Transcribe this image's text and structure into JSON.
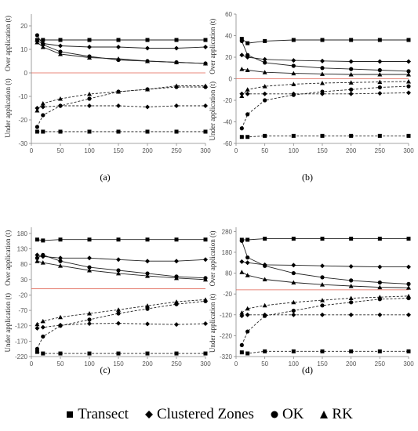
{
  "legend": [
    {
      "name": "Transect",
      "marker": "square"
    },
    {
      "name": "Clustered Zones",
      "marker": "diamond"
    },
    {
      "name": "OK",
      "marker": "circle"
    },
    {
      "name": "RK",
      "marker": "triangle"
    }
  ],
  "chart_data": [
    {
      "type": "line",
      "panel_label": "(a)",
      "ylabel_over": "Over application (t)",
      "ylabel_under": "Under application (t)",
      "x": [
        10,
        20,
        50,
        100,
        150,
        200,
        250,
        300
      ],
      "xticks": [
        0,
        50,
        100,
        150,
        200,
        250,
        300
      ],
      "xlim": [
        0,
        300
      ],
      "yticks": [
        -30,
        -20,
        -10,
        0,
        10,
        20
      ],
      "ylim": [
        -30,
        25
      ],
      "series": [
        {
          "name": "Transect",
          "kind": "over",
          "values": [
            14,
            14,
            14,
            14,
            14,
            14,
            14,
            14
          ]
        },
        {
          "name": "Clustered Zones",
          "kind": "over",
          "values": [
            13.5,
            12.5,
            11.5,
            11,
            11,
            10.5,
            10.5,
            11
          ]
        },
        {
          "name": "OK",
          "kind": "over",
          "values": [
            16,
            12,
            9,
            7,
            5.5,
            5,
            4.5,
            4
          ]
        },
        {
          "name": "RK",
          "kind": "over",
          "values": [
            13,
            11,
            8,
            6.5,
            6,
            5,
            4.5,
            4
          ]
        },
        {
          "name": "Transect",
          "kind": "under",
          "values": [
            -25,
            -25,
            -25,
            -25,
            -25,
            -25,
            -25,
            -25
          ]
        },
        {
          "name": "Clustered Zones",
          "kind": "under",
          "values": [
            -15,
            -14.5,
            -14,
            -14,
            -14,
            -14.5,
            -14,
            -14
          ]
        },
        {
          "name": "OK",
          "kind": "under",
          "values": [
            -23,
            -18,
            -14,
            -11,
            -8,
            -7,
            -6,
            -6
          ]
        },
        {
          "name": "RK",
          "kind": "under",
          "values": [
            -16,
            -13,
            -11,
            -9,
            -8,
            -7,
            -5.5,
            -5.5
          ]
        }
      ]
    },
    {
      "type": "line",
      "panel_label": "(b)",
      "ylabel_over": "Over application (t)",
      "ylabel_under": "Under application (t)",
      "x": [
        10,
        20,
        50,
        100,
        150,
        200,
        250,
        300
      ],
      "xticks": [
        0,
        50,
        100,
        150,
        200,
        250,
        300
      ],
      "xlim": [
        0,
        300
      ],
      "yticks": [
        -60,
        -40,
        -20,
        0,
        20,
        40,
        60
      ],
      "ylim": [
        -60,
        60
      ],
      "series": [
        {
          "name": "Transect",
          "kind": "over",
          "values": [
            37,
            33,
            35,
            36,
            36,
            36,
            36,
            36
          ]
        },
        {
          "name": "Clustered Zones",
          "kind": "over",
          "values": [
            22,
            20,
            18,
            17,
            16.5,
            16,
            16,
            16
          ]
        },
        {
          "name": "OK",
          "kind": "over",
          "values": [
            35,
            22,
            15,
            12,
            10,
            9,
            8,
            7
          ]
        },
        {
          "name": "RK",
          "kind": "over",
          "values": [
            9,
            8,
            6,
            5,
            4.5,
            4,
            4,
            4
          ]
        },
        {
          "name": "Transect",
          "kind": "under",
          "values": [
            -54,
            -54,
            -53,
            -53,
            -53,
            -53,
            -53,
            -53
          ]
        },
        {
          "name": "Clustered Zones",
          "kind": "under",
          "values": [
            -14,
            -14,
            -14,
            -14,
            -14,
            -14,
            -13.5,
            -13
          ]
        },
        {
          "name": "OK",
          "kind": "under",
          "values": [
            -46,
            -33,
            -20,
            -15,
            -12,
            -10,
            -8,
            -7
          ]
        },
        {
          "name": "RK",
          "kind": "under",
          "values": [
            -16,
            -10,
            -7,
            -5,
            -4,
            -3.5,
            -3,
            -2.5
          ]
        }
      ]
    },
    {
      "type": "line",
      "panel_label": "(c)",
      "ylabel_over": "Over application (t)",
      "ylabel_under": "Under application (t)",
      "x": [
        10,
        20,
        50,
        100,
        150,
        200,
        250,
        300
      ],
      "xticks": [
        0,
        50,
        100,
        150,
        200,
        250,
        300
      ],
      "xlim": [
        0,
        300
      ],
      "yticks": [
        -220,
        -170,
        -120,
        -70,
        -20,
        30,
        80,
        130,
        180
      ],
      "ylim": [
        -220,
        200
      ],
      "series": [
        {
          "name": "Transect",
          "kind": "over",
          "values": [
            160,
            157,
            160,
            160,
            160,
            160,
            160,
            160
          ]
        },
        {
          "name": "Clustered Zones",
          "kind": "over",
          "values": [
            110,
            105,
            100,
            100,
            95,
            90,
            90,
            95
          ]
        },
        {
          "name": "OK",
          "kind": "over",
          "values": [
            100,
            110,
            90,
            70,
            60,
            50,
            40,
            35
          ]
        },
        {
          "name": "RK",
          "kind": "over",
          "values": [
            90,
            85,
            75,
            60,
            50,
            42,
            35,
            30
          ]
        },
        {
          "name": "Transect",
          "kind": "under",
          "values": [
            -205,
            -210,
            -210,
            -210,
            -210,
            -210,
            -210,
            -210
          ]
        },
        {
          "name": "Clustered Zones",
          "kind": "under",
          "values": [
            -128,
            -125,
            -118,
            -113,
            -112,
            -114,
            -116,
            -113
          ]
        },
        {
          "name": "OK",
          "kind": "under",
          "values": [
            -195,
            -155,
            -120,
            -100,
            -80,
            -65,
            -50,
            -40
          ]
        },
        {
          "name": "RK",
          "kind": "under",
          "values": [
            -115,
            -105,
            -92,
            -80,
            -68,
            -55,
            -42,
            -35
          ]
        }
      ]
    },
    {
      "type": "line",
      "panel_label": "(d)",
      "ylabel_over": "Over application (t)",
      "ylabel_under": "Under application (t)",
      "x": [
        10,
        20,
        50,
        100,
        150,
        200,
        250,
        300
      ],
      "xticks": [
        0,
        50,
        100,
        150,
        200,
        250,
        300
      ],
      "xlim": [
        0,
        300
      ],
      "yticks": [
        -320,
        -220,
        -120,
        -20,
        80,
        180,
        280
      ],
      "ylim": [
        -320,
        300
      ],
      "series": [
        {
          "name": "Transect",
          "kind": "over",
          "values": [
            240,
            240,
            245,
            245,
            245,
            245,
            245,
            245
          ]
        },
        {
          "name": "Clustered Zones",
          "kind": "over",
          "values": [
            135,
            130,
            120,
            118,
            115,
            112,
            110,
            110
          ]
        },
        {
          "name": "OK",
          "kind": "over",
          "values": [
            235,
            155,
            115,
            80,
            60,
            45,
            35,
            28
          ]
        },
        {
          "name": "RK",
          "kind": "over",
          "values": [
            85,
            70,
            50,
            35,
            25,
            18,
            12,
            10
          ]
        },
        {
          "name": "Transect",
          "kind": "under",
          "values": [
            -300,
            -305,
            -295,
            -295,
            -295,
            -295,
            -295,
            -295
          ]
        },
        {
          "name": "Clustered Zones",
          "kind": "under",
          "values": [
            -125,
            -120,
            -120,
            -120,
            -120,
            -120,
            -120,
            -120
          ]
        },
        {
          "name": "OK",
          "kind": "under",
          "values": [
            -265,
            -200,
            -125,
            -100,
            -75,
            -60,
            -45,
            -40
          ]
        },
        {
          "name": "RK",
          "kind": "under",
          "values": [
            -110,
            -90,
            -75,
            -60,
            -50,
            -40,
            -35,
            -30
          ]
        }
      ]
    }
  ]
}
